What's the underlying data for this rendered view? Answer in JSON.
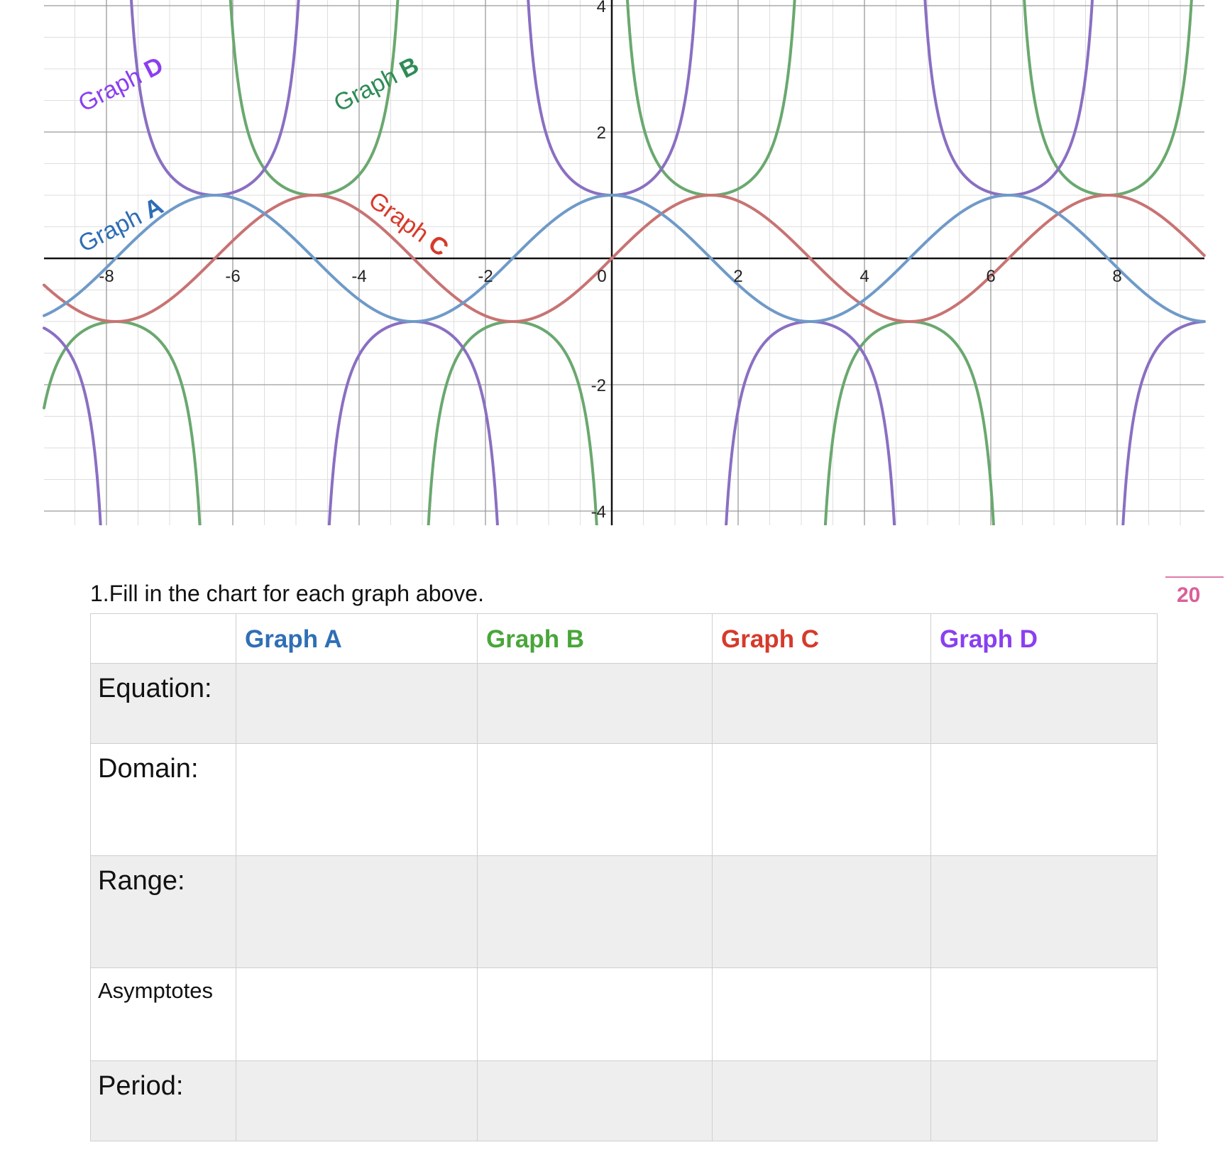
{
  "graph": {
    "x_ticks": [
      "-8",
      "-6",
      "-4",
      "-2",
      "0",
      "2",
      "4",
      "6",
      "8"
    ],
    "y_ticks": [
      "4",
      "2",
      "-2",
      "-4"
    ],
    "labels": [
      {
        "prefix": "Graph ",
        "letter": "A",
        "color": "#2e6db4"
      },
      {
        "prefix": "Graph ",
        "letter": "B",
        "color": "#2e8b57"
      },
      {
        "prefix": "Graph ",
        "letter": "C",
        "color": "#d63a2b"
      },
      {
        "prefix": "Graph ",
        "letter": "D",
        "color": "#8a3ff0"
      }
    ],
    "curve_colors": {
      "A": "#6f9ac8",
      "B": "#6aa86f",
      "C": "#c87373",
      "D": "#8a6fc2"
    }
  },
  "question": "1.Fill in the chart for each graph above.",
  "page_number": "20",
  "table": {
    "headers": [
      {
        "label": "",
        "color": "#000000"
      },
      {
        "label": "Graph A",
        "color": "#2f6fb5"
      },
      {
        "label": "Graph B",
        "color": "#49a63a"
      },
      {
        "label": "Graph C",
        "color": "#d63a2b"
      },
      {
        "label": "Graph D",
        "color": "#8a3ff0"
      }
    ],
    "rows": [
      {
        "label": "Equation:"
      },
      {
        "label": "Domain:"
      },
      {
        "label": "Range:"
      },
      {
        "label": "Asymptotes"
      },
      {
        "label": "Period:"
      }
    ]
  }
}
